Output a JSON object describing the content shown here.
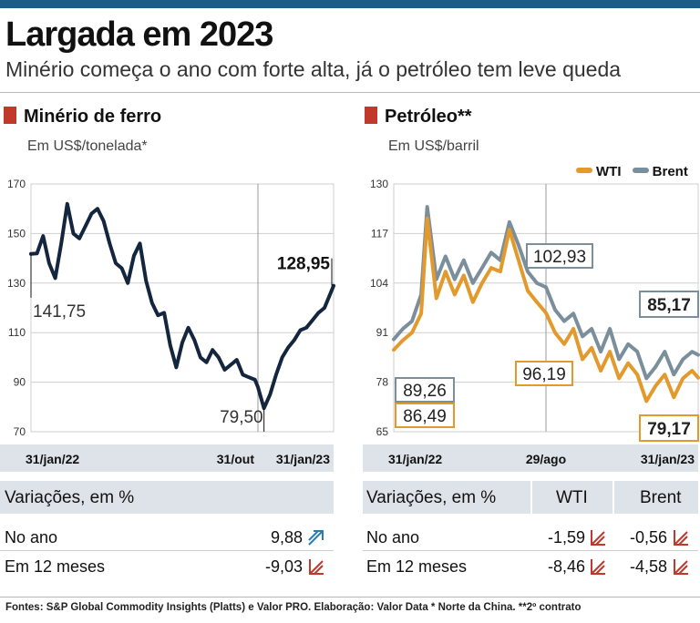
{
  "header": {
    "title": "Largada em 2023",
    "subtitle": "Minério começa o ano com forte alta, já o petróleo tem leve queda"
  },
  "iron": {
    "section_title": "Minério de ferro",
    "unit": "Em US$/tonelada*",
    "variations": {
      "header": "Variações, em %",
      "rows": [
        {
          "label": "No ano",
          "value": "9,88",
          "direction": "up"
        },
        {
          "label": "Em 12 meses",
          "value": "-9,03",
          "direction": "down"
        }
      ]
    }
  },
  "oil": {
    "section_title": "Petróleo**",
    "unit": "Em US$/barril",
    "variations": {
      "header": "Variações, em %",
      "col1": "WTI",
      "col2": "Brent",
      "rows": [
        {
          "label": "No ano",
          "wti": "-1,59",
          "brent": "-0,56",
          "wti_direction": "down",
          "brent_direction": "down"
        },
        {
          "label": "Em 12 meses",
          "wti": "-8,46",
          "brent": "-4,58",
          "wti_direction": "down",
          "brent_direction": "down"
        }
      ]
    }
  },
  "colors": {
    "accent_red": "#c0392b",
    "iron_line": "#14263d",
    "wti": "#e39a2d",
    "brent": "#7a8e9c",
    "arrow_up": "#2a7bb5",
    "arrow_down": "#c0392b",
    "band": "#dde3e8"
  },
  "chart_data": [
    {
      "type": "line",
      "title": "Minério de ferro",
      "ylabel": "Em US$/tonelada*",
      "ylim": [
        70,
        170
      ],
      "yticks": [
        "170",
        "150",
        "130",
        "110",
        "90",
        "70"
      ],
      "ytick_values": [
        170,
        150,
        130,
        110,
        90,
        70
      ],
      "x_labels": [
        "31/jan/22",
        "31/out",
        "31/jan/23"
      ],
      "x_label_positions": [
        0,
        0.75,
        1
      ],
      "vline_positions": [
        0.75
      ],
      "series": [
        {
          "name": "Minério de ferro",
          "x": [
            0,
            0.02,
            0.04,
            0.06,
            0.08,
            0.1,
            0.12,
            0.14,
            0.16,
            0.18,
            0.2,
            0.22,
            0.24,
            0.26,
            0.28,
            0.3,
            0.32,
            0.34,
            0.36,
            0.38,
            0.4,
            0.42,
            0.44,
            0.46,
            0.48,
            0.5,
            0.52,
            0.54,
            0.56,
            0.58,
            0.6,
            0.62,
            0.64,
            0.66,
            0.68,
            0.7,
            0.72,
            0.74,
            0.75,
            0.77,
            0.79,
            0.81,
            0.83,
            0.85,
            0.87,
            0.89,
            0.91,
            0.93,
            0.95,
            0.97,
            0.99,
            1.0
          ],
          "values": [
            141.75,
            142,
            149,
            138,
            132,
            146,
            162,
            150,
            148,
            153,
            158,
            160,
            155,
            146,
            138,
            136,
            130,
            141,
            146,
            131,
            122,
            117,
            118,
            105,
            96,
            106,
            112,
            107,
            100,
            98,
            103,
            100,
            95,
            97,
            99,
            93,
            92,
            91,
            88,
            79.5,
            85,
            93,
            100,
            104,
            107,
            111,
            112,
            115,
            118,
            120,
            126,
            128.95
          ]
        }
      ],
      "annotations": [
        {
          "text": "141,75",
          "x": 0,
          "y": 141.75
        },
        {
          "text": "79,50",
          "x": 0.77,
          "y": 79.5
        },
        {
          "text": "128,95",
          "x": 1.0,
          "y": 128.95
        }
      ]
    },
    {
      "type": "line",
      "title": "Petróleo**",
      "ylabel": "Em US$/barril",
      "ylim": [
        65,
        130
      ],
      "yticks": [
        "130",
        "117",
        "104",
        "91",
        "78",
        "65"
      ],
      "ytick_values": [
        130,
        117,
        104,
        91,
        78,
        65
      ],
      "x_labels": [
        "31/jan/22",
        "29/ago",
        "31/jan/23"
      ],
      "x_label_positions": [
        0,
        0.5,
        1
      ],
      "vline_positions": [
        0.5
      ],
      "legend": [
        "WTI",
        "Brent"
      ],
      "series": [
        {
          "name": "WTI",
          "x": [
            0,
            0.03,
            0.06,
            0.09,
            0.11,
            0.14,
            0.17,
            0.2,
            0.23,
            0.26,
            0.29,
            0.32,
            0.35,
            0.38,
            0.41,
            0.44,
            0.47,
            0.5,
            0.53,
            0.56,
            0.59,
            0.62,
            0.65,
            0.68,
            0.71,
            0.74,
            0.77,
            0.8,
            0.83,
            0.86,
            0.89,
            0.92,
            0.95,
            0.98,
            1.0
          ],
          "values": [
            86.49,
            89,
            91,
            96,
            121,
            100,
            107,
            101,
            106,
            99,
            104,
            108,
            107,
            118,
            110,
            102,
            99,
            96.19,
            91,
            88,
            92,
            84,
            87,
            81,
            86,
            79,
            83,
            80,
            73,
            77,
            80,
            74,
            79,
            81,
            79.17
          ]
        },
        {
          "name": "Brent",
          "x": [
            0,
            0.03,
            0.06,
            0.09,
            0.11,
            0.14,
            0.17,
            0.2,
            0.23,
            0.26,
            0.29,
            0.32,
            0.35,
            0.38,
            0.41,
            0.44,
            0.47,
            0.5,
            0.53,
            0.56,
            0.59,
            0.62,
            0.65,
            0.68,
            0.71,
            0.74,
            0.77,
            0.8,
            0.83,
            0.86,
            0.89,
            0.92,
            0.95,
            0.98,
            1.0
          ],
          "values": [
            89.26,
            92,
            94,
            101,
            124,
            105,
            111,
            105,
            110,
            104,
            108,
            112,
            110,
            120,
            114,
            107,
            104,
            102.93,
            97,
            94,
            96,
            90,
            92,
            86,
            92,
            84,
            88,
            86,
            79,
            82,
            86,
            80,
            84,
            86,
            85.17
          ]
        }
      ],
      "annotations": [
        {
          "text": "89,26",
          "series": "Brent",
          "x": 0,
          "y": 89.26
        },
        {
          "text": "86,49",
          "series": "WTI",
          "x": 0,
          "y": 86.49
        },
        {
          "text": "102,93",
          "series": "Brent",
          "x": 0.5,
          "y": 102.93
        },
        {
          "text": "96,19",
          "series": "WTI",
          "x": 0.5,
          "y": 96.19
        },
        {
          "text": "85,17",
          "series": "Brent",
          "x": 1.0,
          "y": 85.17
        },
        {
          "text": "79,17",
          "series": "WTI",
          "x": 1.0,
          "y": 79.17
        }
      ]
    }
  ],
  "footer": {
    "text": "Fontes: S&P Global Commodity Insights (Platts) e Valor PRO. Elaboração: Valor Data * Norte da China. **2º contrato"
  }
}
